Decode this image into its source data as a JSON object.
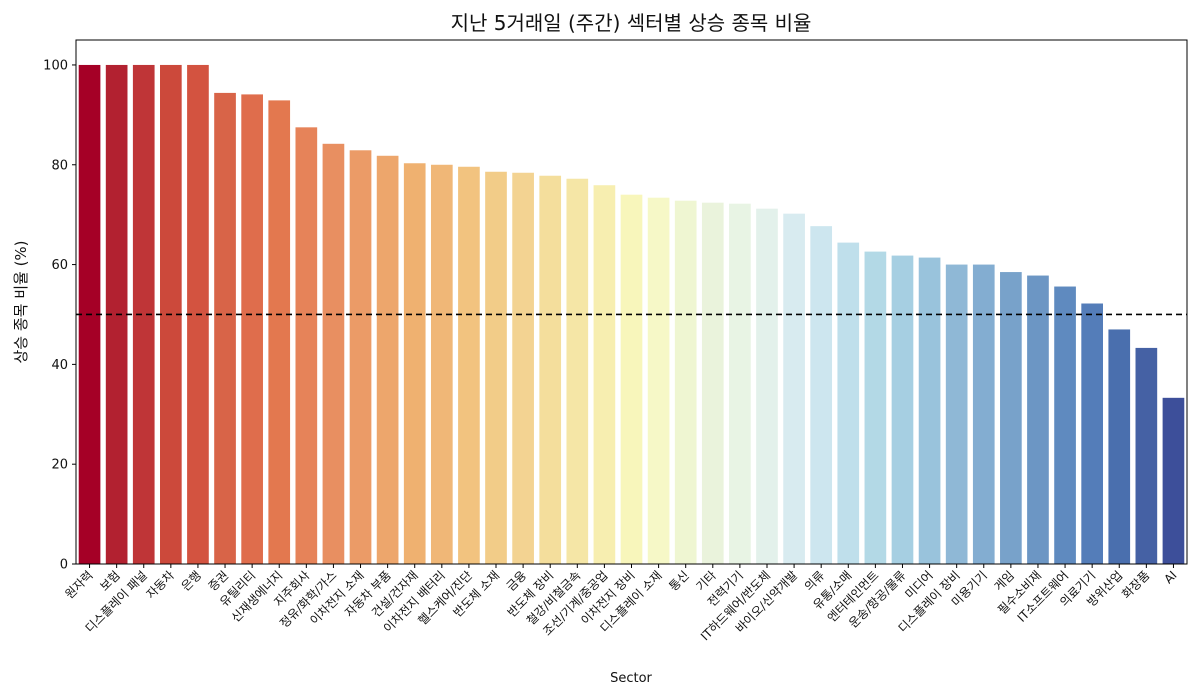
{
  "chart_data": {
    "type": "bar",
    "title": "지난 5거래일 (주간) 섹터별 상승 종목 비율",
    "xlabel": "Sector",
    "ylabel": "상승 종목 비율 (%)",
    "ylim": [
      0,
      105
    ],
    "yticks": [
      0,
      20,
      40,
      60,
      80,
      100
    ],
    "reference_line": {
      "y": 50,
      "style": "dashed",
      "color": "#000000"
    },
    "grid": false,
    "colormap": "RdYlBu",
    "categories": [
      "원자력",
      "보험",
      "디스플레이 패널",
      "자동차",
      "은행",
      "증권",
      "유틸리티",
      "신재생에너지",
      "지주회사",
      "정유/화학/가스",
      "이차전지 소재",
      "자동차 부품",
      "건설/건자재",
      "이차전지 배터리",
      "헬스케어/진단",
      "반도체 소재",
      "금융",
      "반도체 장비",
      "철강/비철금속",
      "조선/기계/중공업",
      "이차전지 장비",
      "디스플레이 소재",
      "통신",
      "기타",
      "전력기기",
      "IT하드웨어/반도체",
      "바이오/신약개발",
      "의류",
      "유통/소매",
      "엔터테인먼트",
      "운송/항공/물류",
      "미디어",
      "디스플레이 장비",
      "미용기기",
      "게임",
      "필수소비재",
      "IT소프트웨어",
      "의료기기",
      "방위산업",
      "화장품",
      "AI"
    ],
    "values": [
      100,
      100,
      100,
      100,
      100,
      94.4,
      94.1,
      92.9,
      87.5,
      84.2,
      82.9,
      81.8,
      80.3,
      80.0,
      79.6,
      78.6,
      78.4,
      77.8,
      77.2,
      75.9,
      74.0,
      73.4,
      72.8,
      72.4,
      72.2,
      71.2,
      70.2,
      67.7,
      64.4,
      62.6,
      61.8,
      61.4,
      60.0,
      60.0,
      58.5,
      57.8,
      55.6,
      52.2,
      47.0,
      43.3,
      33.3
    ],
    "colors": [
      "#a50026",
      "#b22130",
      "#bf3537",
      "#cc493b",
      "#d35340",
      "#d86448",
      "#df6d4c",
      "#e3784f",
      "#e68359",
      "#e88f61",
      "#eb9b67",
      "#eda66c",
      "#efb170",
      "#f0b777",
      "#f2c37f",
      "#f2cc88",
      "#f3d392",
      "#f4de9c",
      "#f5e6a6",
      "#f7eeb0",
      "#f8f6bb",
      "#f6f8c7",
      "#eff6d2",
      "#eaf3dc",
      "#e8f4e4",
      "#e3f1eb",
      "#d8ebf0",
      "#cde6ef",
      "#bfdfeb",
      "#b3d9e6",
      "#a6cfe2",
      "#99c3dc",
      "#8fb8d6",
      "#83add1",
      "#78a2ca",
      "#6c96c4",
      "#5f8abf",
      "#547db9",
      "#4a6fae",
      "#4561a4",
      "#3d4f9a"
    ]
  }
}
